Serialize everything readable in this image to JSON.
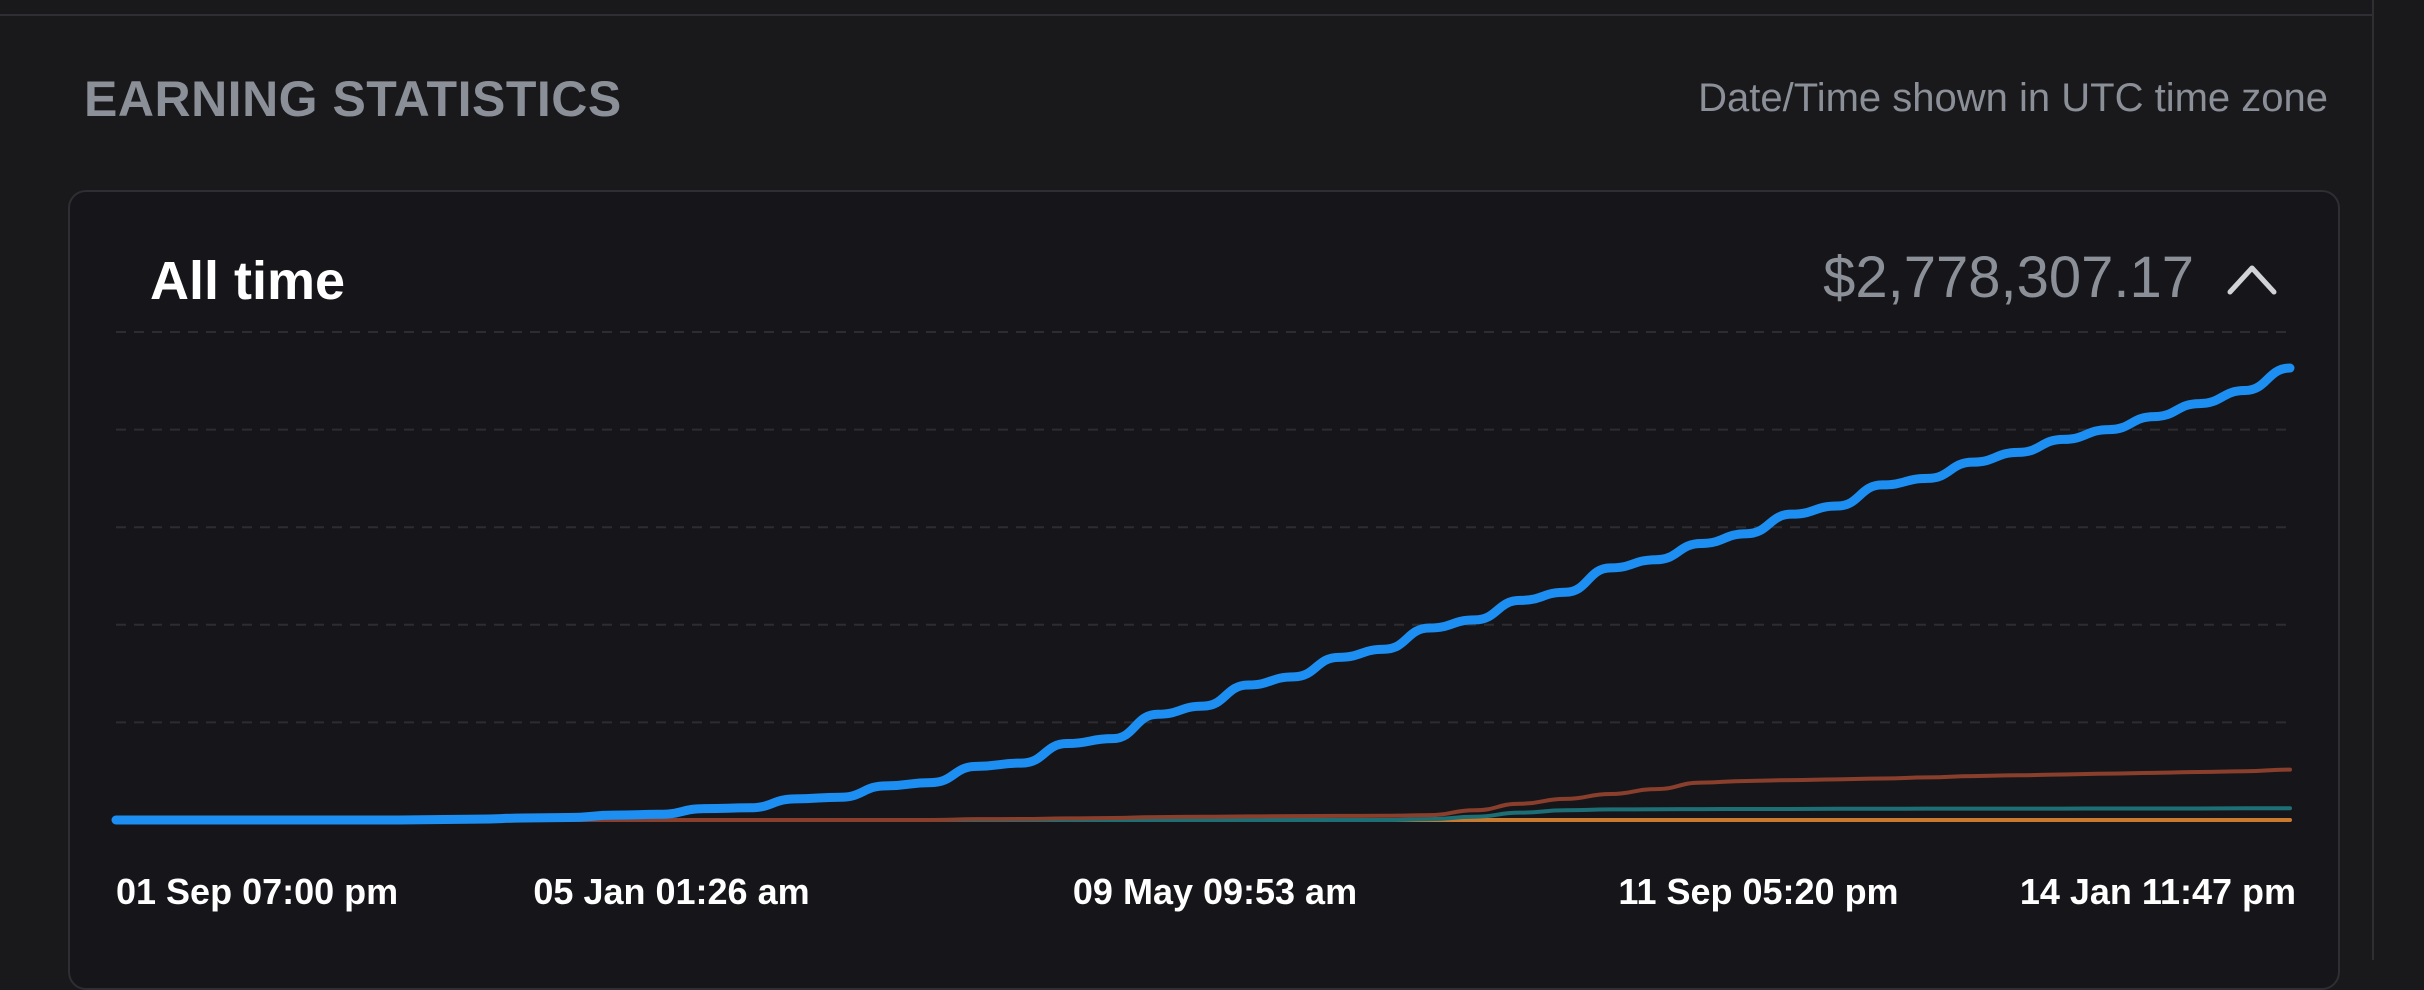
{
  "section": {
    "title": "EARNING STATISTICS",
    "timezone_note": "Date/Time shown in UTC time zone"
  },
  "card": {
    "title": "All time",
    "total": "$2,778,307.17",
    "toggle_icon": "chevron-up-icon"
  },
  "chart_data": {
    "type": "line",
    "xlabels": [
      "01 Sep 07:00 pm",
      "05 Jan 01:26 am",
      "09 May 09:53 am",
      "11 Sep 05:20 pm",
      "14 Jan 11:47 pm"
    ],
    "grid": true,
    "series": [
      {
        "color": "#1e8ff2",
        "values": [
          0,
          0,
          0,
          0,
          0,
          0,
          0,
          2000,
          5000,
          12000,
          15000,
          30000,
          35000,
          70000,
          75000,
          130000,
          140000,
          210000,
          230000,
          330000,
          350000,
          470000,
          500000,
          650000,
          700000,
          830000,
          880000,
          1000000,
          1050000,
          1180000,
          1230000,
          1350000,
          1400000,
          1550000,
          1600000,
          1700000,
          1760000,
          1880000,
          1930000,
          2060000,
          2100000,
          2200000,
          2260000,
          2340000,
          2400000,
          2480000,
          2560000,
          2640000,
          2778307
        ]
      },
      {
        "color": "#8a3f2c",
        "values": [
          0,
          0,
          0,
          0,
          0,
          0,
          0,
          0,
          0,
          0,
          0,
          0,
          0,
          0,
          0,
          0,
          0,
          0,
          0,
          5000,
          6000,
          10000,
          12000,
          18000,
          20000,
          22000,
          24000,
          25000,
          26000,
          30000,
          60000,
          100000,
          130000,
          160000,
          190000,
          230000,
          240000,
          245000,
          250000,
          255000,
          262000,
          270000,
          275000,
          280000,
          285000,
          290000,
          295000,
          300000,
          310000
        ]
      },
      {
        "color": "#1d6f76",
        "values": [
          0,
          0,
          0,
          0,
          0,
          0,
          0,
          0,
          0,
          0,
          0,
          0,
          0,
          0,
          0,
          0,
          0,
          0,
          0,
          0,
          0,
          0,
          0,
          0,
          0,
          0,
          0,
          0,
          0,
          5000,
          20000,
          45000,
          60000,
          65000,
          66000,
          67000,
          68000,
          68000,
          69000,
          69000,
          70000,
          70000,
          70000,
          70000,
          71000,
          71000,
          71000,
          72000,
          72000
        ]
      },
      {
        "color": "#c97a2f",
        "values": [
          0,
          0,
          0,
          0,
          0,
          0,
          0,
          0,
          0,
          0,
          0,
          0,
          0,
          0,
          0,
          0,
          0,
          0,
          0,
          0,
          0,
          0,
          0,
          0,
          0,
          0,
          0,
          0,
          0,
          0,
          0,
          0,
          0,
          0,
          0,
          0,
          0,
          0,
          0,
          0,
          0,
          0,
          0,
          0,
          0,
          0,
          0,
          0,
          0
        ]
      }
    ],
    "ylim": [
      0,
      3000000
    ]
  }
}
